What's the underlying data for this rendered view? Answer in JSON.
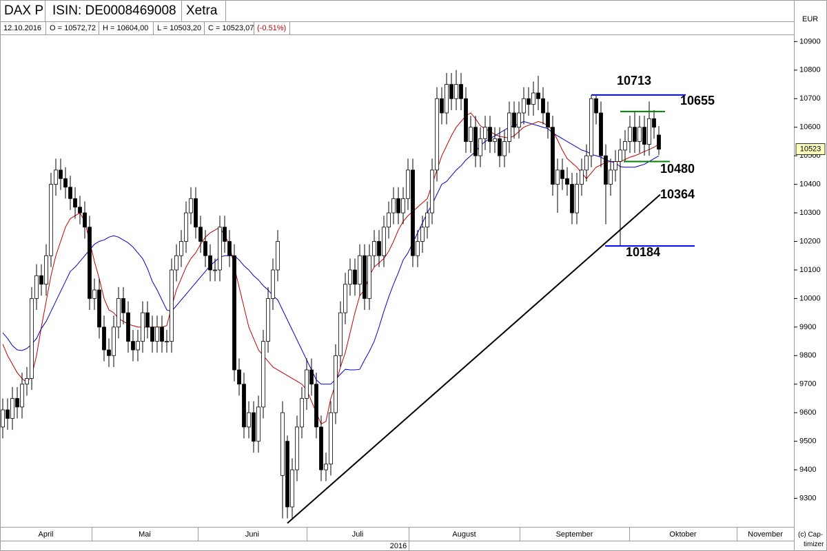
{
  "header": {
    "symbol": "DAX P",
    "isin": "ISIN: DE0008469008",
    "exchange": "Xetra",
    "date": "12.10.2016",
    "open": "O = 10572,72",
    "high": "H = 10604,00",
    "low": "L = 10503,20",
    "close": "C = 10523,07",
    "change": "(-0.51%)",
    "currency": "EUR",
    "credit": "(c) Cap-timizer"
  },
  "chart_data": {
    "type": "candlestick",
    "open": [
      9550,
      9610,
      9580,
      9650,
      9620,
      9700,
      9720,
      10000,
      10080,
      10050,
      10150,
      10400,
      10450,
      10420,
      10390,
      10350,
      10320,
      10300,
      10250,
      10000,
      10030,
      9900,
      9820,
      9800,
      9900,
      10000,
      9950,
      9850,
      9820,
      9850,
      9950,
      9900,
      9850,
      9900,
      9850,
      9850,
      10100,
      10150,
      10200,
      10300,
      10350,
      10250,
      10200,
      10150,
      10100,
      10100,
      10250,
      10200,
      10150,
      9750,
      9700,
      9550,
      9600,
      9500,
      9620,
      9850,
      10000,
      10100,
      9380,
      9500,
      9270,
      9400,
      9550,
      9650,
      9750,
      9700,
      9550,
      9400,
      9420,
      9600,
      9800,
      9950,
      10050,
      10100,
      10050,
      10150,
      10000,
      10150,
      10200,
      10150,
      10250,
      10300,
      10350,
      10300,
      10350,
      10450,
      10150,
      10200,
      10250,
      10300,
      10450,
      10700,
      10650,
      10750,
      10700,
      10750,
      10700,
      10550,
      10600,
      10500,
      10560,
      10600,
      10550,
      10560,
      10500,
      10550,
      10650,
      10600,
      10650,
      10700,
      10680,
      10720,
      10700,
      10650,
      10600,
      10400,
      10450,
      10420,
      10400,
      10300,
      10400,
      10450,
      10500,
      10700,
      10650,
      10500,
      10400,
      10450,
      10480,
      10520,
      10550,
      10600,
      10550,
      10600,
      10540,
      10630,
      10572.72
    ],
    "high": [
      9650,
      9650,
      9690,
      9690,
      9740,
      9760,
      10040,
      10120,
      10120,
      10190,
      10440,
      10490,
      10490,
      10460,
      10430,
      10390,
      10360,
      10340,
      10290,
      10070,
      10070,
      9940,
      9860,
      9940,
      10040,
      10040,
      9990,
      9890,
      9890,
      9990,
      9990,
      9940,
      9940,
      9940,
      9890,
      10140,
      10190,
      10240,
      10340,
      10390,
      10390,
      10290,
      10240,
      10190,
      10140,
      10290,
      10290,
      10240,
      10190,
      9790,
      9740,
      9640,
      9640,
      9660,
      9890,
      10040,
      10140,
      10240,
      9640,
      9520,
      9440,
      9590,
      9690,
      9790,
      9790,
      9740,
      9590,
      9460,
      9640,
      9840,
      9990,
      10090,
      10140,
      10140,
      10190,
      10190,
      10190,
      10240,
      10240,
      10290,
      10340,
      10390,
      10390,
      10390,
      10490,
      10490,
      10240,
      10290,
      10340,
      10490,
      10740,
      10740,
      10790,
      10790,
      10800,
      10790,
      10740,
      10640,
      10640,
      10600,
      10640,
      10640,
      10600,
      10600,
      10590,
      10690,
      10690,
      10690,
      10740,
      10740,
      10760,
      10780,
      10740,
      10690,
      10640,
      10490,
      10490,
      10460,
      10440,
      10440,
      10490,
      10540,
      10713,
      10710,
      10690,
      10540,
      10490,
      10520,
      10560,
      10590,
      10640,
      10655,
      10640,
      10640,
      10690,
      10660,
      10604
    ],
    "low": [
      9510,
      9540,
      9540,
      9580,
      9580,
      9660,
      9680,
      9960,
      10010,
      10010,
      10110,
      10360,
      10380,
      10350,
      10310,
      10280,
      10260,
      10210,
      9960,
      9960,
      9860,
      9780,
      9760,
      9760,
      9860,
      9910,
      9810,
      9780,
      9780,
      9810,
      9860,
      9810,
      9810,
      9810,
      9810,
      9810,
      10060,
      10110,
      10160,
      10260,
      10210,
      10160,
      10110,
      10060,
      10060,
      10060,
      10160,
      10110,
      9710,
      9660,
      9510,
      9510,
      9460,
      9460,
      9580,
      9810,
      9960,
      10060,
      9230,
      9230,
      9230,
      9360,
      9510,
      9610,
      9660,
      9510,
      9360,
      9360,
      9380,
      9560,
      9760,
      9910,
      10010,
      10010,
      10010,
      9960,
      9960,
      10110,
      10110,
      10110,
      10210,
      10260,
      10260,
      10260,
      10310,
      10110,
      10110,
      10160,
      10210,
      10260,
      10410,
      10610,
      10610,
      10660,
      10660,
      10660,
      10510,
      10510,
      10460,
      10460,
      10520,
      10510,
      10510,
      10460,
      10460,
      10510,
      10560,
      10560,
      10610,
      10640,
      10640,
      10660,
      10610,
      10560,
      10360,
      10300,
      10380,
      10360,
      10260,
      10260,
      10360,
      10410,
      10460,
      10610,
      10460,
      10260,
      10360,
      10410,
      10184,
      10480,
      10510,
      10510,
      10510,
      10500,
      10500,
      10560,
      10503.2
    ],
    "close": [
      9610,
      9580,
      9650,
      9620,
      9700,
      9720,
      10000,
      10080,
      10050,
      10150,
      10400,
      10450,
      10420,
      10390,
      10350,
      10320,
      10300,
      10250,
      10000,
      10030,
      9900,
      9820,
      9800,
      9900,
      10000,
      9950,
      9850,
      9820,
      9850,
      9950,
      9900,
      9850,
      9900,
      9850,
      9850,
      10100,
      10150,
      10200,
      10300,
      10350,
      10250,
      10200,
      10150,
      10100,
      10100,
      10250,
      10200,
      10150,
      9750,
      9700,
      9550,
      9600,
      9500,
      9620,
      9850,
      10000,
      10100,
      10200,
      9600,
      9270,
      9400,
      9550,
      9650,
      9750,
      9700,
      9550,
      9400,
      9420,
      9600,
      9800,
      9950,
      10050,
      10100,
      10050,
      10150,
      10000,
      10150,
      10200,
      10150,
      10250,
      10300,
      10350,
      10300,
      10350,
      10450,
      10150,
      10200,
      10250,
      10300,
      10450,
      10700,
      10650,
      10750,
      10700,
      10750,
      10700,
      10550,
      10600,
      10500,
      10560,
      10600,
      10550,
      10560,
      10500,
      10550,
      10650,
      10600,
      10650,
      10700,
      10680,
      10720,
      10700,
      10650,
      10600,
      10400,
      10450,
      10420,
      10400,
      10300,
      10400,
      10450,
      10500,
      10700,
      10650,
      10500,
      10400,
      10450,
      10480,
      10520,
      10550,
      10600,
      10550,
      10600,
      10540,
      10630,
      10600,
      10523.07
    ],
    "up_color": "#ffffff",
    "down_color": "#000000",
    "series": [
      {
        "color": "#c00000",
        "values": [
          9840,
          9800,
          9770,
          9740,
          9720,
          9705,
          9730,
          9800,
          9900,
          9990,
          10080,
          10150,
          10200,
          10250,
          10280,
          10290,
          10300,
          10270,
          10200,
          10130,
          10070,
          10000,
          9960,
          9950,
          9930,
          9920,
          9910,
          9905,
          9900,
          9900,
          9900,
          9900,
          9900,
          9900,
          9905,
          9970,
          10030,
          10070,
          10110,
          10140,
          10160,
          10190,
          10215,
          10230,
          10240,
          10250,
          10220,
          10190,
          10110,
          10040,
          9970,
          9900,
          9860,
          9820,
          9800,
          9780,
          9760,
          9750,
          9740,
          9730,
          9720,
          9710,
          9700,
          9680,
          9640,
          9600,
          9560,
          9570,
          9650,
          9700,
          9760,
          9810,
          9880,
          9950,
          10010,
          10030,
          10080,
          10110,
          10125,
          10140,
          10165,
          10200,
          10240,
          10270,
          10290,
          10305,
          10320,
          10335,
          10350,
          10400,
          10450,
          10500,
          10535,
          10570,
          10600,
          10620,
          10640,
          10650,
          10630,
          10605,
          10595,
          10585,
          10575,
          10568,
          10565,
          10562,
          10570,
          10585,
          10600,
          10607,
          10613,
          10620,
          10615,
          10605,
          10590,
          10555,
          10520,
          10490,
          10475,
          10460,
          10440,
          10420,
          10440,
          10460,
          10468,
          10477,
          10480,
          10480,
          10480,
          10487,
          10495,
          10500,
          10507,
          10515,
          10522,
          10530,
          10540
        ]
      },
      {
        "color": "#0000cc",
        "values": [
          9880,
          9860,
          9835,
          9820,
          9818,
          9825,
          9840,
          9860,
          9895,
          9920,
          9955,
          9990,
          10025,
          10060,
          10095,
          10110,
          10130,
          10150,
          10170,
          10190,
          10200,
          10205,
          10215,
          10220,
          10215,
          10205,
          10195,
          10180,
          10160,
          10140,
          10105,
          10060,
          10030,
          9995,
          9960,
          9955,
          9975,
          9995,
          10015,
          10035,
          10055,
          10075,
          10095,
          10115,
          10130,
          10145,
          10150,
          10150,
          10150,
          10135,
          10115,
          10100,
          10080,
          10065,
          10045,
          10030,
          10010,
          9995,
          9960,
          9925,
          9890,
          9855,
          9820,
          9785,
          9750,
          9715,
          9700,
          9700,
          9700,
          9717,
          9735,
          9752,
          9750,
          9750,
          9752,
          9785,
          9815,
          9850,
          9900,
          9955,
          10005,
          10050,
          10090,
          10135,
          10160,
          10195,
          10230,
          10265,
          10300,
          10330,
          10365,
          10400,
          10410,
          10430,
          10450,
          10465,
          10485,
          10500,
          10515,
          10535,
          10550,
          10560,
          10570,
          10580,
          10590,
          10600,
          10605,
          10612,
          10620,
          10615,
          10610,
          10605,
          10600,
          10595,
          10580,
          10570,
          10560,
          10550,
          10540,
          10530,
          10520,
          10515,
          10505,
          10500,
          10495,
          10485,
          10480,
          10475,
          10462,
          10460,
          10460,
          10460,
          10465,
          10470,
          10480,
          10490,
          10500
        ]
      }
    ],
    "ylim": [
      9200,
      10925
    ],
    "yticks": [
      9300,
      9400,
      9500,
      9600,
      9700,
      9800,
      9900,
      10000,
      10100,
      10200,
      10300,
      10400,
      10500,
      10600,
      10700,
      10800,
      10900
    ],
    "grid": false,
    "last_price": {
      "value": 10523.07,
      "label": "10523"
    },
    "levels": [
      {
        "value": 10713,
        "color": "#0000ff"
      },
      {
        "value": 10655,
        "color": "#008000"
      },
      {
        "value": 10480,
        "color": "#008000"
      },
      {
        "value": 10184,
        "color": "#0000ff"
      }
    ],
    "trendline": {
      "start": 9213,
      "end": 10364,
      "color": "#000000"
    },
    "months": [
      "April",
      "Mai",
      "Juni",
      "Juli",
      "August",
      "September",
      "Oktober",
      "November"
    ],
    "year": "2016"
  }
}
